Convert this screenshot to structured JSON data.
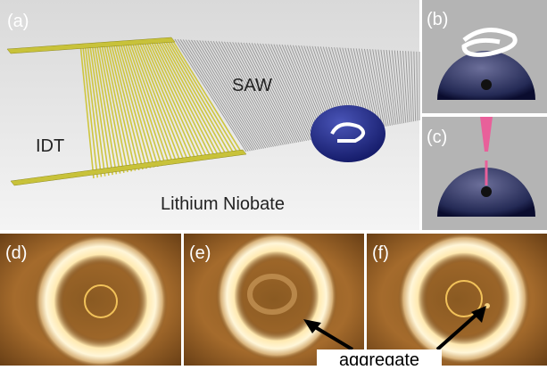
{
  "panels": {
    "a": {
      "label": "(a)",
      "idt": "IDT",
      "saw": "SAW",
      "substrate": "Lithium Niobate"
    },
    "b": {
      "label": "(b)"
    },
    "c": {
      "label": "(c)"
    },
    "d": {
      "label": "(d)"
    },
    "e": {
      "label": "(e)"
    },
    "f": {
      "label": "(f)"
    }
  },
  "annotation": "aggregate"
}
